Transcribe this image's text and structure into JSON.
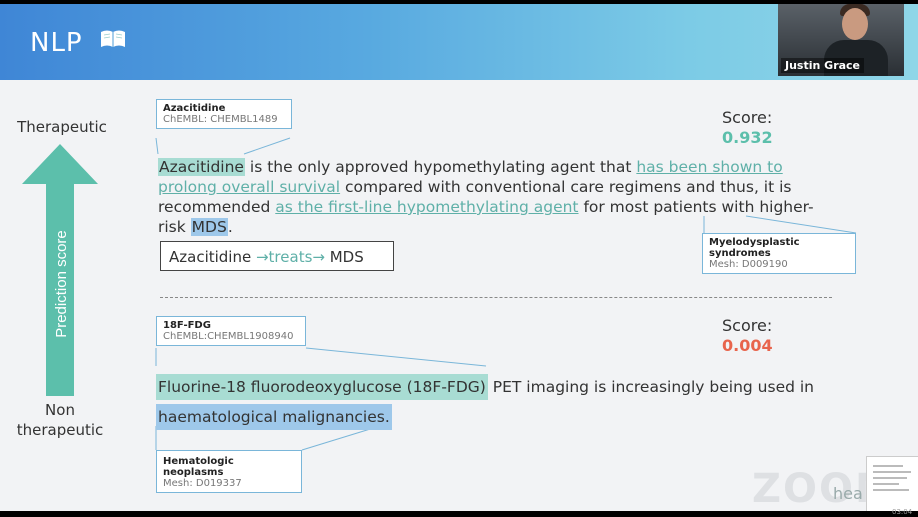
{
  "slide": {
    "title": "NLP",
    "title_icon": "book-icon"
  },
  "video": {
    "participant_name": "Justin Grace"
  },
  "axis": {
    "top_label": "Therapeutic",
    "bottom_label_line1": "Non",
    "bottom_label_line2": "therapeutic",
    "arrow_label": "Prediction score",
    "arrow_color": "#5cbfab"
  },
  "example1": {
    "drug": {
      "name": "Azacitidine",
      "id": "ChEMBL: CHEMBL1489"
    },
    "score_label": "Score:",
    "score_value": "0.932",
    "score_color": "#5cbfab",
    "sentence": {
      "drug": "Azacitidine",
      "t1": " is the only approved hypomethylating agent that ",
      "link1": "has been shown to prolong overall survival",
      "t2": " compared with conventional care regimens and thus, it is recommended ",
      "link2": "as the first-line hypomethylating agent",
      "t3": " for most patients with higher-risk ",
      "disease": "MDS",
      "t4": "."
    },
    "disease": {
      "name_line1": "Myelodysplastic",
      "name_line2": "syndromes",
      "id": "Mesh: D009190"
    },
    "relation": {
      "subject": "Azacitidine ",
      "predicate": "→treats→",
      "object": " MDS"
    }
  },
  "example2": {
    "drug": {
      "name": "18F-FDG",
      "id": "ChEMBL:CHEMBL1908940"
    },
    "score_label": "Score:",
    "score_value": "0.004",
    "score_color": "#e8644c",
    "sentence": {
      "drug": "Fluorine-18 fluorodeoxyglucose (18F-FDG)",
      "t1": " PET imaging is increasingly being used in",
      "disease": "haematological malignancies."
    },
    "disease": {
      "name": "Hematologic neoplasms",
      "id": "Mesh: D019337"
    }
  },
  "watermark": {
    "zoom": "ZOOM",
    "fragment": "hea"
  },
  "clock": "03:04"
}
